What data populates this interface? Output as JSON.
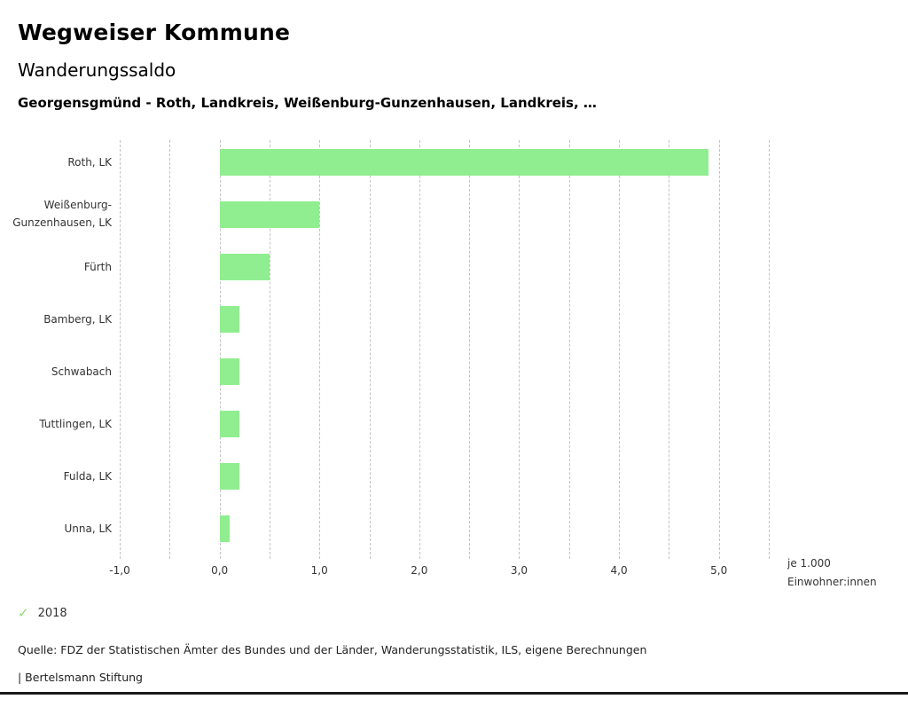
{
  "header": {
    "title": "Wegweiser Kommune",
    "subtitle": "Wanderungssaldo",
    "description": "Georgensgmünd - Roth, Landkreis, Weißenburg-Gunzenhausen, Landkreis, …"
  },
  "chart_data": {
    "type": "bar",
    "orientation": "horizontal",
    "title": "Wanderungssaldo",
    "categories": [
      "Roth, LK",
      "Weißenburg-Gunzenhausen, LK",
      "Fürth",
      "Bamberg, LK",
      "Schwabach",
      "Tuttlingen, LK",
      "Fulda, LK",
      "Unna, LK"
    ],
    "series": [
      {
        "name": "2018",
        "values": [
          4.9,
          1.0,
          0.5,
          0.2,
          0.2,
          0.2,
          0.2,
          0.1
        ]
      }
    ],
    "xlim": [
      -1.0,
      5.5
    ],
    "grid_step": 0.5,
    "ticks": [
      -1.0,
      0.0,
      1.0,
      2.0,
      3.0,
      4.0,
      5.0
    ],
    "tick_labels": [
      "-1,0",
      "0,0",
      "1,0",
      "2,0",
      "3,0",
      "4,0",
      "5,0"
    ],
    "xlabel_line1": "je 1.000",
    "xlabel_line2": "Einwohner:innen",
    "bar_color": "#90ee90",
    "grid": "dashed-vertical",
    "legend_position": "bottom-left"
  },
  "legend": {
    "check_icon": "checkmark-icon",
    "check_color": "#8fd878",
    "year": "2018"
  },
  "footer": {
    "source": "Quelle: FDZ der Statistischen Ämter des Bundes und der Länder, Wanderungsstatistik, ILS, eigene Berechnungen",
    "brand": "| Bertelsmann Stiftung"
  }
}
